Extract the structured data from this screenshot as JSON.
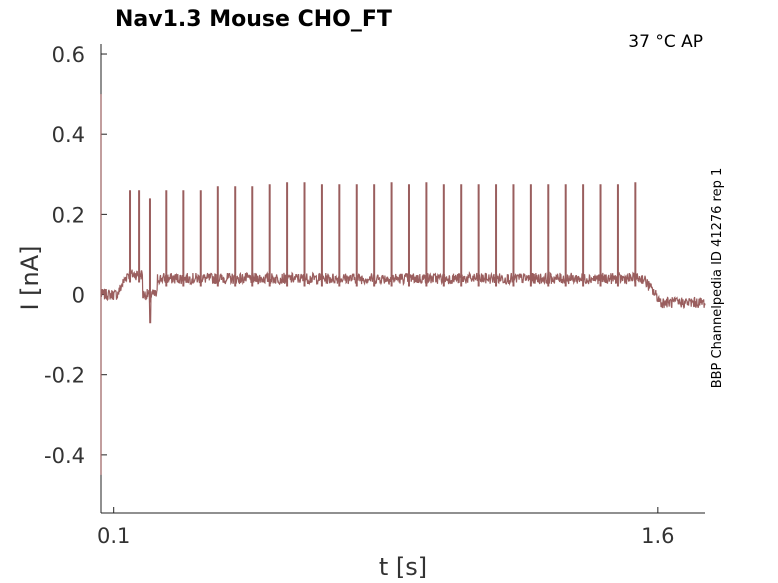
{
  "chart_data": {
    "type": "line",
    "title": "Nav1.3  Mouse  CHO_FT",
    "condition": "37 °C  AP",
    "side_label": "BBP Channelpedia ID 41276 rep 1",
    "xlabel": "t [s]",
    "ylabel": "I [nA]",
    "xlim": [
      0.065,
      1.73
    ],
    "ylim": [
      -0.545,
      0.625
    ],
    "xticks": [
      {
        "value": 0.1,
        "label": "0.1"
      },
      {
        "value": 1.6,
        "label": "1.6"
      }
    ],
    "yticks": [
      {
        "value": 0.6,
        "label": "0.6"
      },
      {
        "value": 0.4,
        "label": "0.4"
      },
      {
        "value": 0.2,
        "label": "0.2"
      },
      {
        "value": 0.0,
        "label": "0"
      },
      {
        "value": -0.2,
        "label": "-0.2"
      },
      {
        "value": -0.4,
        "label": "-0.4"
      }
    ],
    "series": [
      {
        "color": "#9a5e5e",
        "baseline_before": 0.0,
        "step_on": 0.11,
        "step_off": 1.56,
        "plateau": 0.04,
        "after_level": -0.02,
        "dip": {
          "t": 0.2,
          "value": -0.07
        },
        "spikes": [
          {
            "t": 0.145,
            "peak": 0.26
          },
          {
            "t": 0.17,
            "peak": 0.26
          },
          {
            "t": 0.2,
            "peak": 0.24
          },
          {
            "t": 0.245,
            "peak": 0.26
          },
          {
            "t": 0.292,
            "peak": 0.26
          },
          {
            "t": 0.34,
            "peak": 0.26
          },
          {
            "t": 0.387,
            "peak": 0.27
          },
          {
            "t": 0.435,
            "peak": 0.27
          },
          {
            "t": 0.482,
            "peak": 0.27
          },
          {
            "t": 0.53,
            "peak": 0.275
          },
          {
            "t": 0.578,
            "peak": 0.28
          },
          {
            "t": 0.626,
            "peak": 0.28
          },
          {
            "t": 0.674,
            "peak": 0.275
          },
          {
            "t": 0.722,
            "peak": 0.275
          },
          {
            "t": 0.77,
            "peak": 0.275
          },
          {
            "t": 0.818,
            "peak": 0.275
          },
          {
            "t": 0.866,
            "peak": 0.28
          },
          {
            "t": 0.914,
            "peak": 0.275
          },
          {
            "t": 0.962,
            "peak": 0.28
          },
          {
            "t": 1.01,
            "peak": 0.275
          },
          {
            "t": 1.058,
            "peak": 0.275
          },
          {
            "t": 1.106,
            "peak": 0.275
          },
          {
            "t": 1.154,
            "peak": 0.275
          },
          {
            "t": 1.202,
            "peak": 0.275
          },
          {
            "t": 1.25,
            "peak": 0.275
          },
          {
            "t": 1.298,
            "peak": 0.275
          },
          {
            "t": 1.346,
            "peak": 0.275
          },
          {
            "t": 1.394,
            "peak": 0.275
          },
          {
            "t": 1.442,
            "peak": 0.275
          },
          {
            "t": 1.49,
            "peak": 0.275
          },
          {
            "t": 1.538,
            "peak": 0.28
          }
        ],
        "initial_transient": [
          {
            "t": 0.065,
            "value": 0.5
          },
          {
            "t": 0.065,
            "value": -0.45
          }
        ]
      }
    ]
  }
}
